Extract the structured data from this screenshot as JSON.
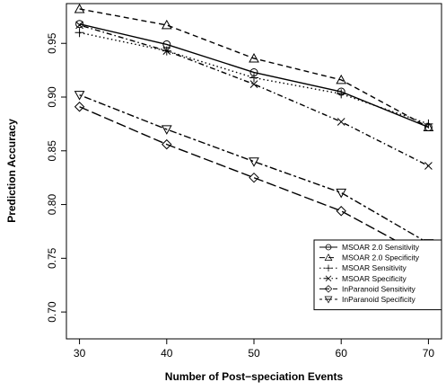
{
  "chart_data": {
    "type": "line",
    "xlabel": "Number of Post−speciation Events",
    "ylabel": "Prediction Accuracy",
    "x": [
      30,
      40,
      50,
      60,
      70
    ],
    "x_ticks": [
      "30",
      "40",
      "50",
      "60",
      "70"
    ],
    "y_ticks": [
      "0.70",
      "0.75",
      "0.80",
      "0.85",
      "0.90",
      "0.95"
    ],
    "xlim": [
      28.5,
      71.5
    ],
    "ylim": [
      0.675,
      0.987
    ],
    "grid": false,
    "legend_position": "bottom-right",
    "series": [
      {
        "name": "MSOAR 2.0 Sensitivity",
        "marker": "circle",
        "dash": "solid",
        "values": [
          0.968,
          0.949,
          0.923,
          0.905,
          0.872
        ]
      },
      {
        "name": "MSOAR 2.0 Specificity",
        "marker": "triangle-up",
        "dash": "dashed",
        "values": [
          0.982,
          0.967,
          0.936,
          0.916,
          0.872
        ]
      },
      {
        "name": "MSOAR Sensitivity",
        "marker": "plus",
        "dash": "dotted",
        "values": [
          0.96,
          0.943,
          0.918,
          0.903,
          0.875
        ]
      },
      {
        "name": "MSOAR Specificity",
        "marker": "cross",
        "dash": "dotdash",
        "values": [
          0.967,
          0.943,
          0.912,
          0.877,
          0.836
        ]
      },
      {
        "name": "InParanoid Sensitivity",
        "marker": "diamond",
        "dash": "longdash",
        "values": [
          0.891,
          0.856,
          0.825,
          0.794,
          0.75
        ]
      },
      {
        "name": "InParanoid Specificity",
        "marker": "triangle-down",
        "dash": "twodash",
        "values": [
          0.902,
          0.87,
          0.84,
          0.811,
          0.764
        ]
      }
    ]
  }
}
